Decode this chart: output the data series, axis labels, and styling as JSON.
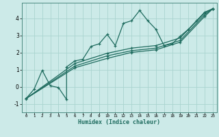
{
  "xlabel": "Humidex (Indice chaleur)",
  "background_color": "#cceae8",
  "line_color": "#1e6b5e",
  "grid_color": "#aad4d0",
  "xlim": [
    -0.5,
    23.5
  ],
  "ylim": [
    -1.5,
    4.9
  ],
  "xticks": [
    0,
    1,
    2,
    3,
    4,
    5,
    6,
    7,
    8,
    9,
    10,
    11,
    12,
    13,
    14,
    15,
    16,
    17,
    18,
    19,
    20,
    21,
    22,
    23
  ],
  "yticks": [
    -1,
    0,
    1,
    2,
    3,
    4
  ],
  "series1": [
    [
      0,
      -0.7
    ],
    [
      1,
      -0.15
    ],
    [
      2,
      0.95
    ],
    [
      3,
      0.05
    ],
    [
      4,
      -0.05
    ],
    [
      5,
      -0.75
    ],
    [
      5,
      1.15
    ],
    [
      6,
      1.5
    ],
    [
      7,
      1.6
    ],
    [
      8,
      2.35
    ],
    [
      9,
      2.5
    ],
    [
      10,
      3.05
    ],
    [
      11,
      2.4
    ],
    [
      12,
      3.7
    ],
    [
      13,
      3.85
    ],
    [
      14,
      4.45
    ],
    [
      15,
      3.85
    ],
    [
      16,
      3.35
    ],
    [
      17,
      2.4
    ],
    [
      18,
      2.5
    ],
    [
      19,
      2.95
    ],
    [
      20,
      3.35
    ],
    [
      21,
      3.85
    ],
    [
      22,
      4.35
    ],
    [
      23,
      4.55
    ]
  ],
  "series2": [
    [
      0,
      -0.7
    ],
    [
      6,
      1.1
    ],
    [
      10,
      1.65
    ],
    [
      13,
      2.0
    ],
    [
      16,
      2.15
    ],
    [
      19,
      2.6
    ],
    [
      22,
      4.1
    ],
    [
      23,
      4.55
    ]
  ],
  "series3": [
    [
      0,
      -0.7
    ],
    [
      6,
      1.2
    ],
    [
      10,
      1.8
    ],
    [
      13,
      2.1
    ],
    [
      16,
      2.25
    ],
    [
      19,
      2.7
    ],
    [
      22,
      4.2
    ],
    [
      23,
      4.55
    ]
  ],
  "series4": [
    [
      0,
      -0.7
    ],
    [
      6,
      1.35
    ],
    [
      10,
      1.95
    ],
    [
      13,
      2.25
    ],
    [
      16,
      2.4
    ],
    [
      19,
      2.85
    ],
    [
      22,
      4.3
    ],
    [
      23,
      4.55
    ]
  ]
}
